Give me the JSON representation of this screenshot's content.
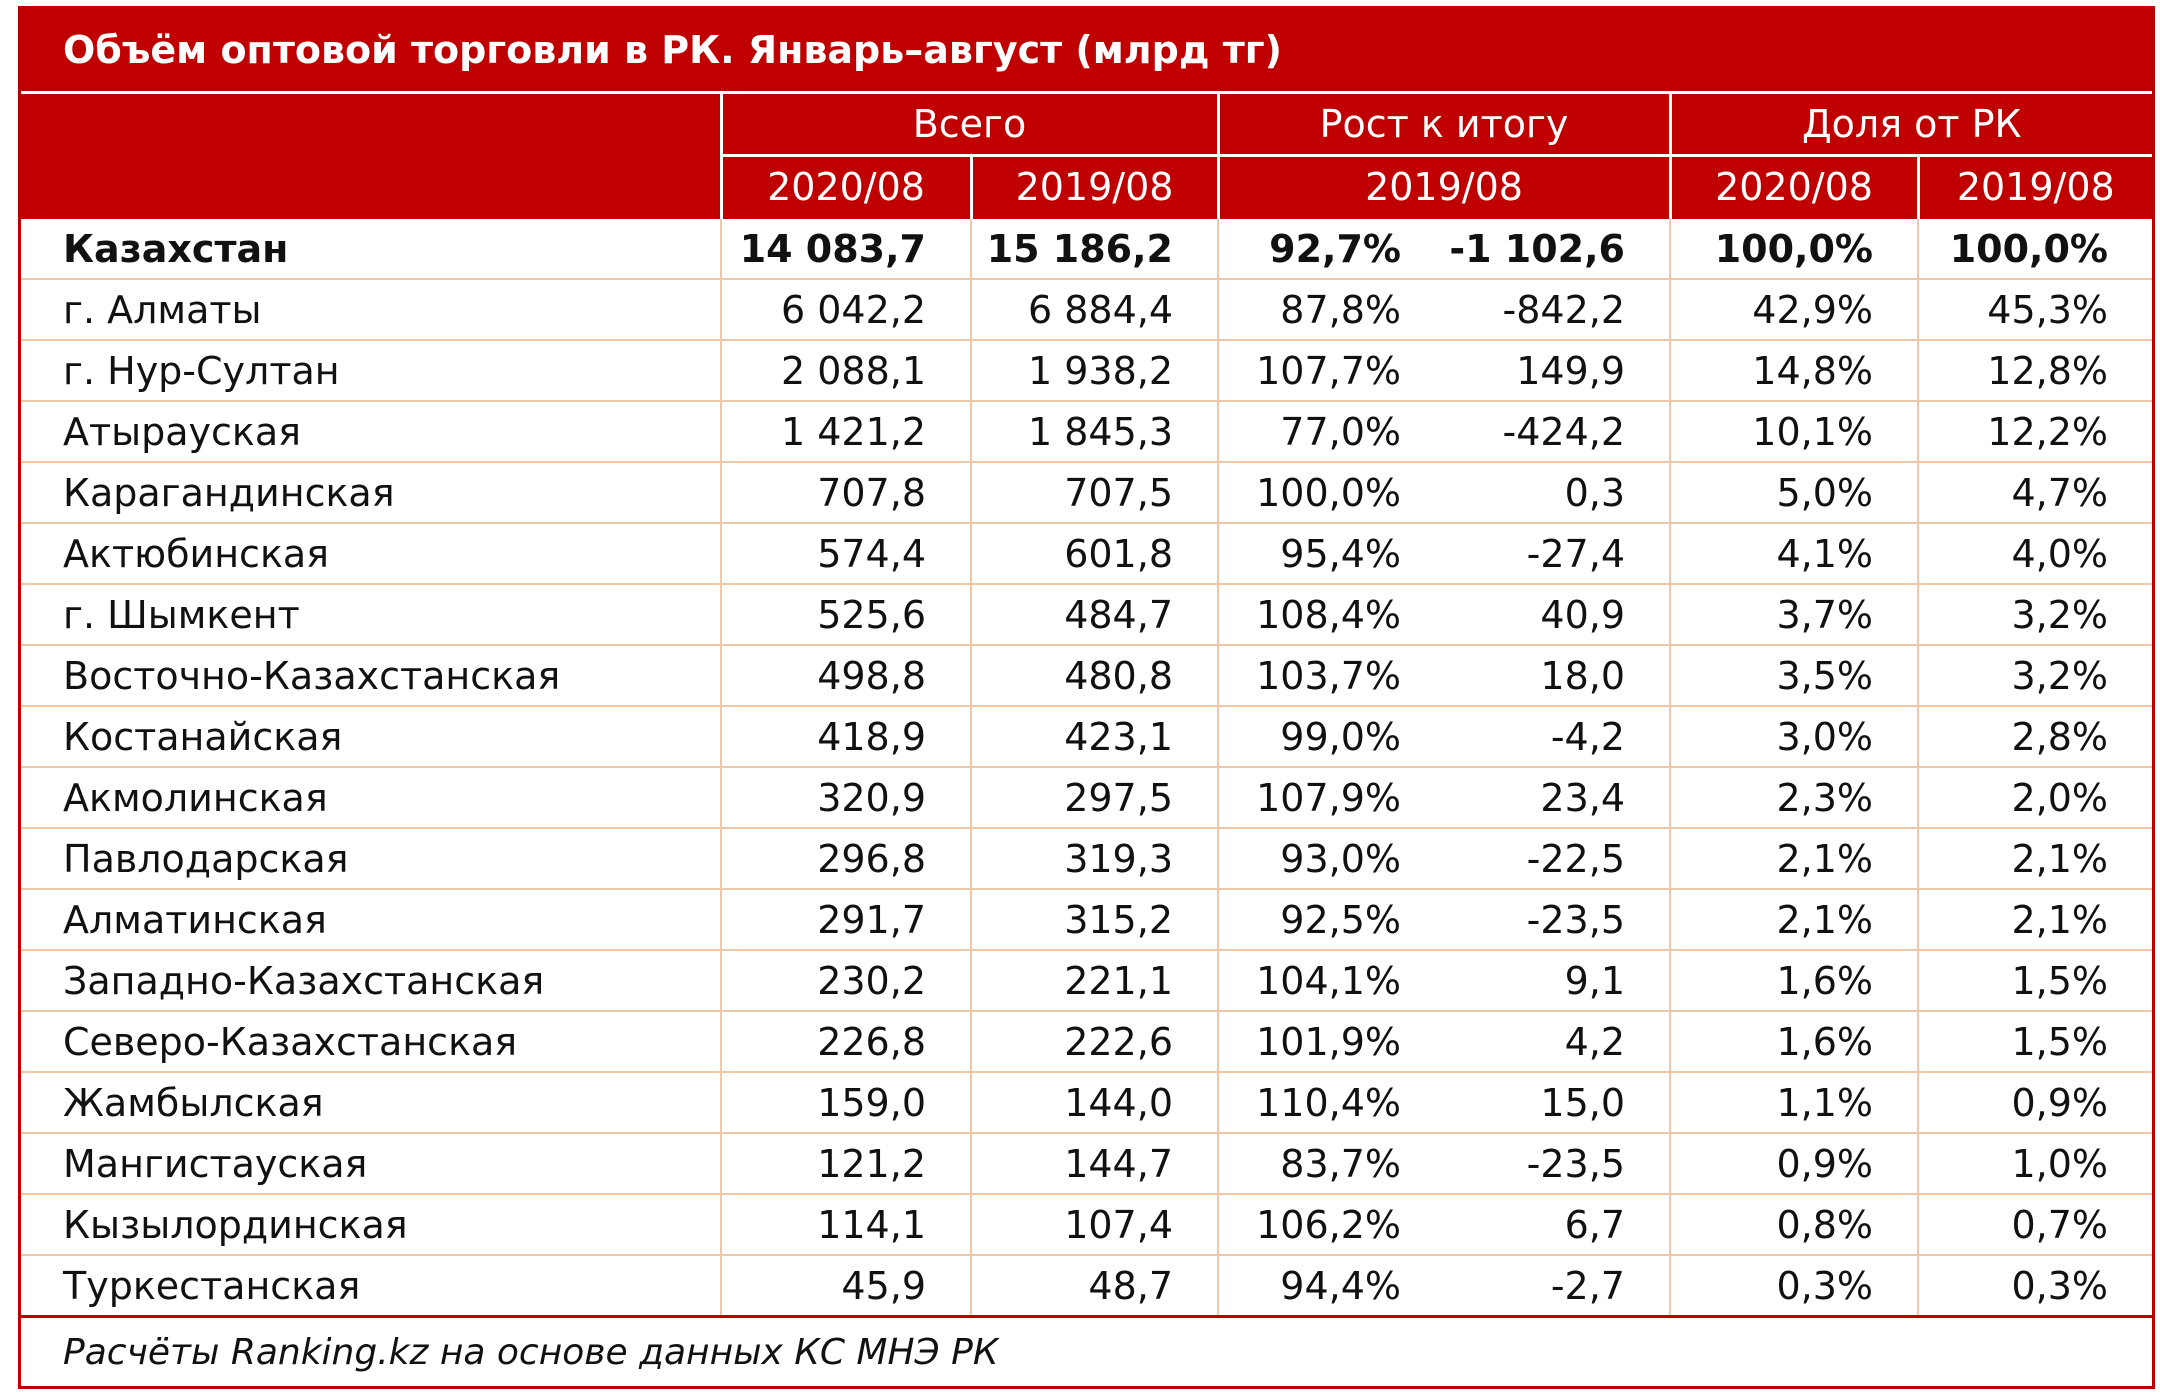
{
  "title": "Объём оптовой торговли в РК. Январь–август (млрд тг)",
  "headers": {
    "group_total": "Всего",
    "group_growth": "Рост к итогу",
    "group_share": "Доля от РК",
    "total_2020": "2020/08",
    "total_2019": "2019/08",
    "growth_period": "2019/08",
    "share_2020": "2020/08",
    "share_2019": "2019/08"
  },
  "rows": [
    {
      "region": "Казахстан",
      "v2020": "14 083,7",
      "v2019": "15 186,2",
      "growth_pct": "92,7%",
      "growth_abs": "-1 102,6",
      "share2020": "100,0%",
      "share2019": "100,0%"
    },
    {
      "region": "г. Алматы",
      "v2020": "6 042,2",
      "v2019": "6 884,4",
      "growth_pct": "87,8%",
      "growth_abs": "-842,2",
      "share2020": "42,9%",
      "share2019": "45,3%"
    },
    {
      "region": "г. Нур-Султан",
      "v2020": "2 088,1",
      "v2019": "1 938,2",
      "growth_pct": "107,7%",
      "growth_abs": "149,9",
      "share2020": "14,8%",
      "share2019": "12,8%"
    },
    {
      "region": "Атырауская",
      "v2020": "1 421,2",
      "v2019": "1 845,3",
      "growth_pct": "77,0%",
      "growth_abs": "-424,2",
      "share2020": "10,1%",
      "share2019": "12,2%"
    },
    {
      "region": "Карагандинская",
      "v2020": "707,8",
      "v2019": "707,5",
      "growth_pct": "100,0%",
      "growth_abs": "0,3",
      "share2020": "5,0%",
      "share2019": "4,7%"
    },
    {
      "region": "Актюбинская",
      "v2020": "574,4",
      "v2019": "601,8",
      "growth_pct": "95,4%",
      "growth_abs": "-27,4",
      "share2020": "4,1%",
      "share2019": "4,0%"
    },
    {
      "region": "г. Шымкент",
      "v2020": "525,6",
      "v2019": "484,7",
      "growth_pct": "108,4%",
      "growth_abs": "40,9",
      "share2020": "3,7%",
      "share2019": "3,2%"
    },
    {
      "region": "Восточно-Казахстанская",
      "v2020": "498,8",
      "v2019": "480,8",
      "growth_pct": "103,7%",
      "growth_abs": "18,0",
      "share2020": "3,5%",
      "share2019": "3,2%"
    },
    {
      "region": "Костанайская",
      "v2020": "418,9",
      "v2019": "423,1",
      "growth_pct": "99,0%",
      "growth_abs": "-4,2",
      "share2020": "3,0%",
      "share2019": "2,8%"
    },
    {
      "region": "Акмолинская",
      "v2020": "320,9",
      "v2019": "297,5",
      "growth_pct": "107,9%",
      "growth_abs": "23,4",
      "share2020": "2,3%",
      "share2019": "2,0%"
    },
    {
      "region": "Павлодарская",
      "v2020": "296,8",
      "v2019": "319,3",
      "growth_pct": "93,0%",
      "growth_abs": "-22,5",
      "share2020": "2,1%",
      "share2019": "2,1%"
    },
    {
      "region": "Алматинская",
      "v2020": "291,7",
      "v2019": "315,2",
      "growth_pct": "92,5%",
      "growth_abs": "-23,5",
      "share2020": "2,1%",
      "share2019": "2,1%"
    },
    {
      "region": "Западно-Казахстанская",
      "v2020": "230,2",
      "v2019": "221,1",
      "growth_pct": "104,1%",
      "growth_abs": "9,1",
      "share2020": "1,6%",
      "share2019": "1,5%"
    },
    {
      "region": "Северо-Казахстанская",
      "v2020": "226,8",
      "v2019": "222,6",
      "growth_pct": "101,9%",
      "growth_abs": "4,2",
      "share2020": "1,6%",
      "share2019": "1,5%"
    },
    {
      "region": "Жамбылская",
      "v2020": "159,0",
      "v2019": "144,0",
      "growth_pct": "110,4%",
      "growth_abs": "15,0",
      "share2020": "1,1%",
      "share2019": "0,9%"
    },
    {
      "region": "Мангистауская",
      "v2020": "121,2",
      "v2019": "144,7",
      "growth_pct": "83,7%",
      "growth_abs": "-23,5",
      "share2020": "0,9%",
      "share2019": "1,0%"
    },
    {
      "region": "Кызылординская",
      "v2020": "114,1",
      "v2019": "107,4",
      "growth_pct": "106,2%",
      "growth_abs": "6,7",
      "share2020": "0,8%",
      "share2019": "0,7%"
    },
    {
      "region": "Туркестанская",
      "v2020": "45,9",
      "v2019": "48,7",
      "growth_pct": "94,4%",
      "growth_abs": "-2,7",
      "share2020": "0,3%",
      "share2019": "0,3%"
    }
  ],
  "footnote": "Расчёты Ranking.kz на основе данных КС МНЭ РК",
  "colors": {
    "header_bg": "#c00000",
    "header_text": "#ffffff",
    "row_divider": "#f0c8a8"
  }
}
